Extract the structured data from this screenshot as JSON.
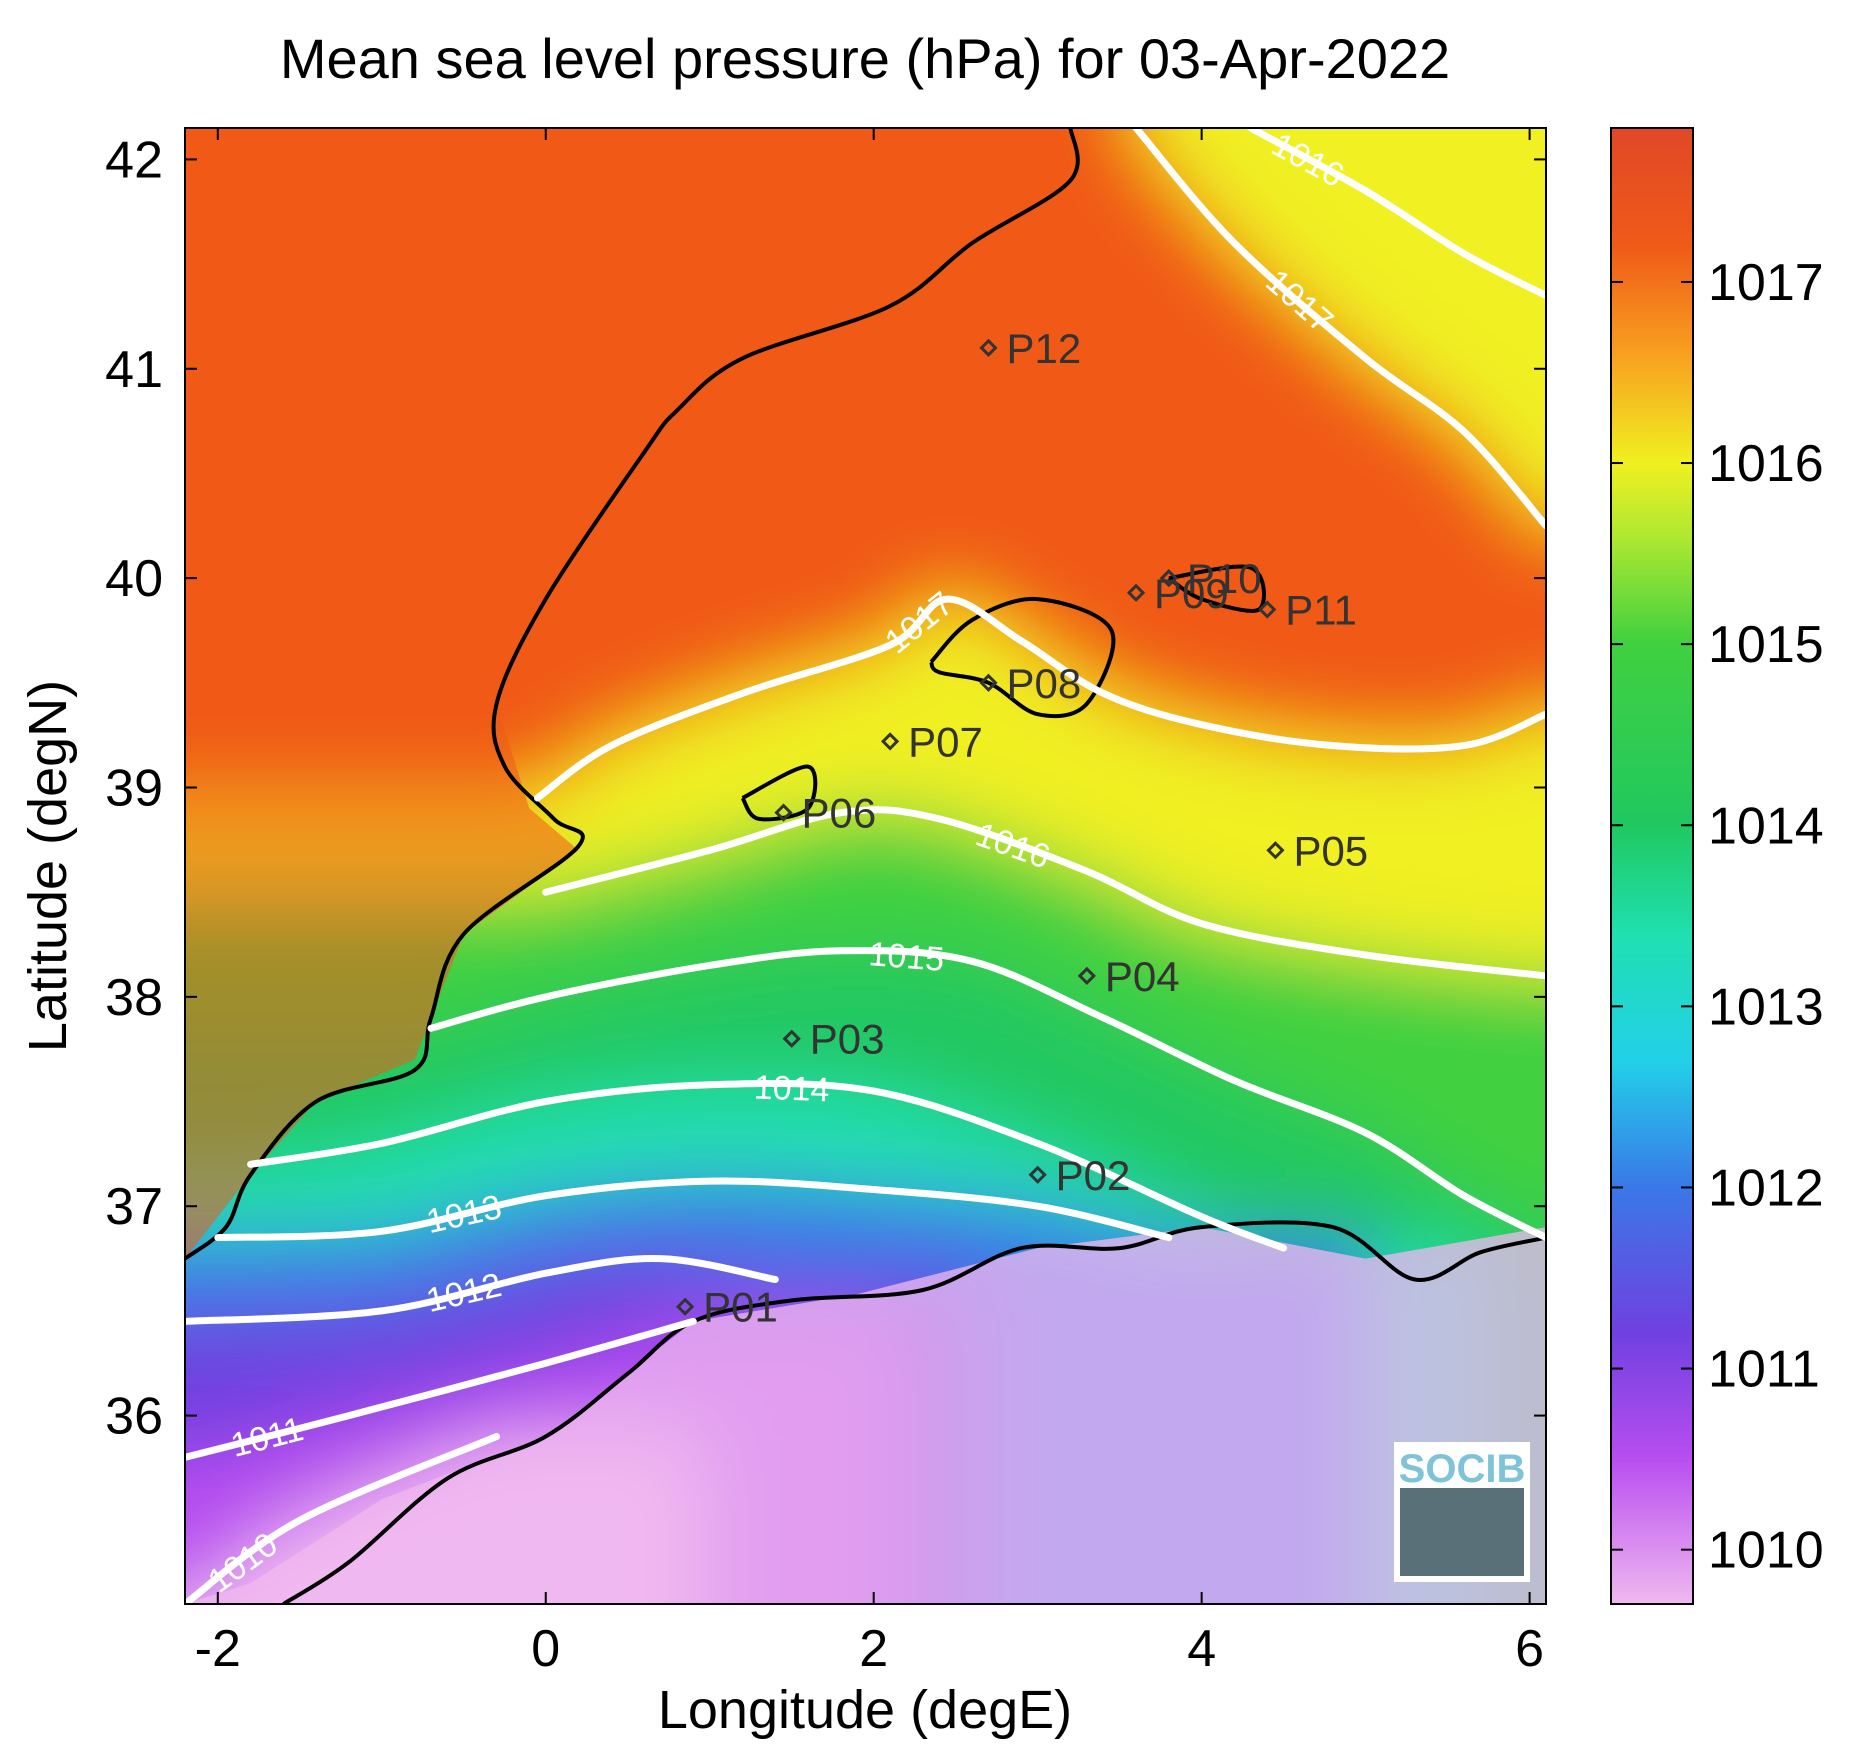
{
  "chart_data": {
    "type": "heatmap",
    "title": "Mean sea level pressure (hPa) for 03-Apr-2022",
    "xlabel": "Longitude (degE)",
    "ylabel": "Latitude (degN)",
    "xlim": [
      -2.2,
      6.1
    ],
    "ylim": [
      35.1,
      42.15
    ],
    "x_ticks": [
      -2,
      0,
      2,
      4,
      6
    ],
    "y_ticks": [
      36,
      37,
      38,
      39,
      40,
      41,
      42
    ],
    "colorbar": {
      "range": [
        1009.7,
        1017.85
      ],
      "ticks": [
        1010,
        1011,
        1012,
        1013,
        1014,
        1015,
        1016,
        1017
      ],
      "colors": {
        "1009.7": "#f0b8f0",
        "1010.5": "#b84ef0",
        "1011.2": "#7040e0",
        "1012": "#3a78e8",
        "1012.7": "#22d0e8",
        "1013.4": "#20e0b0",
        "1014": "#20c860",
        "1015": "#40d040",
        "1015.6": "#b0e830",
        "1016": "#f0f020",
        "1016.6": "#f8a020",
        "1017.2": "#f05a18",
        "1017.85": "#e04828"
      }
    },
    "contours": [
      {
        "level": 1010,
        "label": "1010",
        "points": [
          [
            -2.2,
            35.1
          ],
          [
            -1.5,
            35.5
          ],
          [
            -0.3,
            35.9
          ]
        ]
      },
      {
        "level": 1011,
        "label": "1011",
        "points": [
          [
            -2.2,
            35.8
          ],
          [
            -1.2,
            36.0
          ],
          [
            0.0,
            36.25
          ],
          [
            0.9,
            36.45
          ]
        ]
      },
      {
        "level": 1012,
        "label": "1012",
        "points": [
          [
            -2.2,
            36.45
          ],
          [
            -1.0,
            36.5
          ],
          [
            0.0,
            36.68
          ],
          [
            0.7,
            36.75
          ],
          [
            1.4,
            36.65
          ]
        ]
      },
      {
        "level": 1013,
        "label": "1013",
        "points": [
          [
            -2.0,
            36.85
          ],
          [
            -1.0,
            36.88
          ],
          [
            0.0,
            37.05
          ],
          [
            1.0,
            37.12
          ],
          [
            2.0,
            37.08
          ],
          [
            3.0,
            37.0
          ],
          [
            3.8,
            36.85
          ]
        ]
      },
      {
        "level": 1014,
        "label": "1014",
        "points": [
          [
            -1.8,
            37.2
          ],
          [
            -1.0,
            37.3
          ],
          [
            0.0,
            37.5
          ],
          [
            1.0,
            37.58
          ],
          [
            2.0,
            37.55
          ],
          [
            3.0,
            37.3
          ],
          [
            4.0,
            36.95
          ],
          [
            4.5,
            36.8
          ]
        ]
      },
      {
        "level": 1015,
        "label": "1015",
        "points": [
          [
            -0.7,
            37.85
          ],
          [
            0.0,
            38.0
          ],
          [
            1.0,
            38.15
          ],
          [
            1.8,
            38.22
          ],
          [
            2.6,
            38.17
          ],
          [
            3.4,
            37.9
          ],
          [
            4.2,
            37.6
          ],
          [
            5.0,
            37.35
          ],
          [
            5.6,
            37.05
          ],
          [
            6.1,
            36.85
          ]
        ]
      },
      {
        "level": 1016,
        "label": "1016",
        "points": [
          [
            0.0,
            38.5
          ],
          [
            1.0,
            38.7
          ],
          [
            1.8,
            38.88
          ],
          [
            2.4,
            38.85
          ],
          [
            3.3,
            38.6
          ],
          [
            4.0,
            38.35
          ],
          [
            5.0,
            38.2
          ],
          [
            6.1,
            38.1
          ]
        ]
      },
      {
        "level": 1017,
        "label": "1017",
        "points": [
          [
            -0.05,
            38.95
          ],
          [
            0.4,
            39.2
          ],
          [
            1.2,
            39.45
          ],
          [
            2.1,
            39.68
          ],
          [
            2.45,
            39.9
          ],
          [
            2.9,
            39.7
          ],
          [
            3.4,
            39.45
          ],
          [
            4.0,
            39.3
          ],
          [
            4.8,
            39.2
          ],
          [
            5.6,
            39.2
          ],
          [
            6.1,
            39.35
          ]
        ]
      },
      {
        "level": 1017,
        "label": "1017",
        "points": [
          [
            3.6,
            42.15
          ],
          [
            4.2,
            41.6
          ],
          [
            5.0,
            41.05
          ],
          [
            5.6,
            40.7
          ],
          [
            6.1,
            40.25
          ]
        ]
      },
      {
        "level": 1016,
        "label": "1016",
        "points": [
          [
            4.3,
            42.15
          ],
          [
            5.0,
            41.85
          ],
          [
            5.6,
            41.55
          ],
          [
            6.1,
            41.35
          ]
        ]
      }
    ],
    "points": [
      {
        "label": "P01",
        "lon": 0.85,
        "lat": 36.52
      },
      {
        "label": "P02",
        "lon": 3.0,
        "lat": 37.15
      },
      {
        "label": "P03",
        "lon": 1.5,
        "lat": 37.8
      },
      {
        "label": "P04",
        "lon": 3.3,
        "lat": 38.1
      },
      {
        "label": "P05",
        "lon": 4.45,
        "lat": 38.7
      },
      {
        "label": "P06",
        "lon": 1.45,
        "lat": 38.88
      },
      {
        "label": "P07",
        "lon": 2.1,
        "lat": 39.22
      },
      {
        "label": "P08",
        "lon": 2.7,
        "lat": 39.5
      },
      {
        "label": "P09",
        "lon": 3.6,
        "lat": 39.93
      },
      {
        "label": "P10",
        "lon": 3.8,
        "lat": 40.0
      },
      {
        "label": "P11",
        "lon": 4.4,
        "lat": 39.85
      },
      {
        "label": "P12",
        "lon": 2.7,
        "lat": 41.1
      }
    ],
    "grid": false
  },
  "logo": {
    "text": "SOCIB"
  }
}
